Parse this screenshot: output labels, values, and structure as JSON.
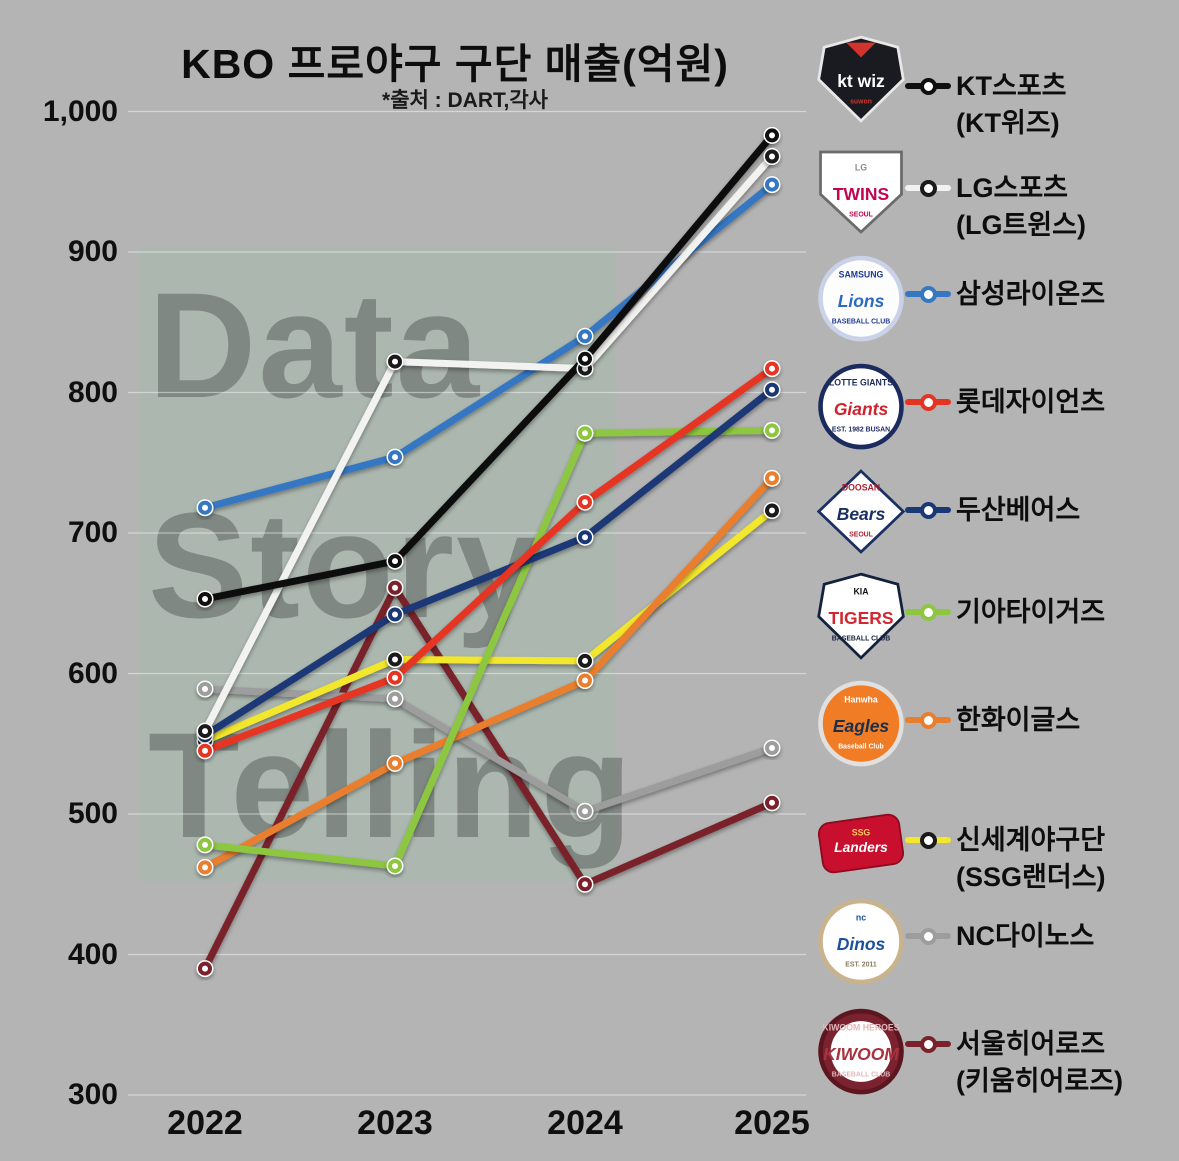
{
  "title": "KBO 프로야구 구단 매출(억원)",
  "subtitle": "*출처 : DART,각사",
  "watermark": {
    "lines": [
      "Data",
      "Story",
      "Telling"
    ]
  },
  "axes": {
    "y_ticks": [
      "1,000",
      "900",
      "800",
      "700",
      "600",
      "500",
      "400",
      "300"
    ],
    "x_ticks": [
      "2022",
      "2023",
      "2024",
      "2025"
    ]
  },
  "chart_data": {
    "type": "line",
    "x": [
      "2022",
      "2023",
      "2024",
      "2025"
    ],
    "ylim": [
      300,
      1000
    ],
    "grid": "horizontal",
    "legend_position": "right",
    "title": "KBO 프로야구 구단 매출(억원)",
    "source_note": "*출처 : DART,각사",
    "series": [
      {
        "name": "KT스포츠(KT위즈)",
        "color": "#0f0f0f",
        "marker_border": "#0f0f0f",
        "values": [
          653,
          680,
          824,
          983
        ]
      },
      {
        "name": "LG스포츠(LG트윈스)",
        "color": "#f2f2f0",
        "marker_border": "#1a1a1a",
        "values": [
          559,
          822,
          817,
          968
        ]
      },
      {
        "name": "삼성라이온즈",
        "color": "#3577c2",
        "marker_border": "#3577c2",
        "values": [
          718,
          754,
          840,
          948
        ]
      },
      {
        "name": "롯데자이언츠",
        "color": "#e63423",
        "marker_border": "#e63423",
        "values": [
          545,
          597,
          722,
          817
        ]
      },
      {
        "name": "두산베어스",
        "color": "#1b3876",
        "marker_border": "#1b3876",
        "values": [
          556,
          642,
          697,
          802
        ]
      },
      {
        "name": "기아타이거즈",
        "color": "#8dc63f",
        "marker_border": "#8dc63f",
        "values": [
          478,
          463,
          771,
          773
        ]
      },
      {
        "name": "한화이글스",
        "color": "#e97e2e",
        "marker_border": "#e97e2e",
        "values": [
          462,
          536,
          595,
          739
        ]
      },
      {
        "name": "신세계야구단(SSG랜더스)",
        "color": "#f2e72b",
        "marker_border": "#1a1a1a",
        "values": [
          552,
          610,
          609,
          716
        ]
      },
      {
        "name": "NC다이노스",
        "color": "#9d9d9d",
        "marker_border": "#9d9d9d",
        "values": [
          589,
          582,
          502,
          547
        ]
      },
      {
        "name": "서울히어로즈(키움히어로즈)",
        "color": "#7a212b",
        "marker_border": "#7a212b",
        "values": [
          390,
          661,
          450,
          508
        ]
      }
    ]
  },
  "legend": [
    {
      "label": "KT스포츠",
      "label2": "(KT위즈)",
      "logo": {
        "shape": "shield",
        "bg": "#1a1b20",
        "border": "#e8e8e8",
        "accent": "#d0342c",
        "main": {
          "text": "kt wiz",
          "color": "#ffffff",
          "italic": false
        },
        "bottom": {
          "text": "suwon",
          "color": "#d0342c"
        }
      }
    },
    {
      "label": "LG스포츠",
      "label2": "(LG트윈스)",
      "logo": {
        "shape": "plate",
        "bg": "#ffffff",
        "border": "#6b6b6b",
        "top": {
          "text": "LG",
          "color": "#8a8a8a"
        },
        "main": {
          "text": "TWINS",
          "color": "#c30452",
          "italic": false
        },
        "bottom": {
          "text": "SEOUL",
          "color": "#c30452"
        }
      }
    },
    {
      "label": "삼성라이온즈",
      "label2": null,
      "logo": {
        "shape": "circle",
        "bg": "#fdfdfd",
        "border": "#c9d2e8",
        "top": {
          "text": "SAMSUNG",
          "color": "#1d3a8f"
        },
        "main": {
          "text": "Lions",
          "color": "#2a6ac0",
          "italic": true
        },
        "bottom": {
          "text": "BASEBALL CLUB",
          "color": "#1d3a8f"
        }
      }
    },
    {
      "label": "롯데자이언츠",
      "label2": null,
      "logo": {
        "shape": "circle",
        "bg": "#ffffff",
        "border": "#1c2b5e",
        "top": {
          "text": "LOTTE GIANTS",
          "color": "#1c2b5e"
        },
        "main": {
          "text": "Giants",
          "color": "#d0212c",
          "italic": true
        },
        "bottom": {
          "text": "EST. 1982 BUSAN",
          "color": "#1c2b5e"
        }
      }
    },
    {
      "label": "두산베어스",
      "label2": null,
      "logo": {
        "shape": "diamond",
        "bg": "#ffffff",
        "border": "#1a2f63",
        "top": {
          "text": "DOOSAN",
          "color": "#b02030"
        },
        "main": {
          "text": "Bears",
          "color": "#1a2f63",
          "italic": true
        },
        "bottom": {
          "text": "SEOUL",
          "color": "#b02030"
        }
      }
    },
    {
      "label": "기아타이거즈",
      "label2": null,
      "logo": {
        "shape": "shield",
        "bg": "#ffffff",
        "border": "#14213d",
        "top": {
          "text": "KIA",
          "color": "#111111"
        },
        "main": {
          "text": "TIGERS",
          "color": "#d22630",
          "italic": false
        },
        "bottom": {
          "text": "BASEBALL CLUB",
          "color": "#14213d"
        }
      }
    },
    {
      "label": "한화이글스",
      "label2": null,
      "logo": {
        "shape": "circle",
        "bg": "#f07c26",
        "border": "#e0e0e0",
        "top": {
          "text": "Hanwha",
          "color": "#ffffff"
        },
        "main": {
          "text": "Eagles",
          "color": "#1a2f4a",
          "italic": true
        },
        "bottom": {
          "text": "Baseball Club",
          "color": "#ffffff"
        }
      }
    },
    {
      "label": "신세계야구단",
      "label2": "(SSG랜더스)",
      "logo": {
        "shape": "slant",
        "bg": "#c8102e",
        "border": "#8f0a20",
        "top": {
          "text": "SSG",
          "color": "#f5c85c"
        },
        "main": {
          "text": "Landers",
          "color": "#ffffff",
          "italic": true
        }
      }
    },
    {
      "label": "NC다이노스",
      "label2": null,
      "logo": {
        "shape": "circle",
        "bg": "#ffffff",
        "border": "#c9b38c",
        "top": {
          "text": "nc",
          "color": "#1c4f9c"
        },
        "main": {
          "text": "Dinos",
          "color": "#1c4f9c",
          "italic": true
        },
        "bottom": {
          "text": "EST. 2011",
          "color": "#8a7a5a"
        }
      }
    },
    {
      "label": "서울히어로즈",
      "label2": "(키움히어로즈)",
      "logo": {
        "shape": "circle",
        "bg": "#7b2230",
        "border": "#5c161f",
        "inner": "#ffffff",
        "top": {
          "text": "KIWOOM HEROES",
          "color": "#e0b8bc"
        },
        "main": {
          "text": "KIWOOM",
          "color": "#a8323f",
          "italic": true
        },
        "bottom": {
          "text": "BASEBALL CLUB",
          "color": "#e0b8bc"
        }
      }
    }
  ]
}
